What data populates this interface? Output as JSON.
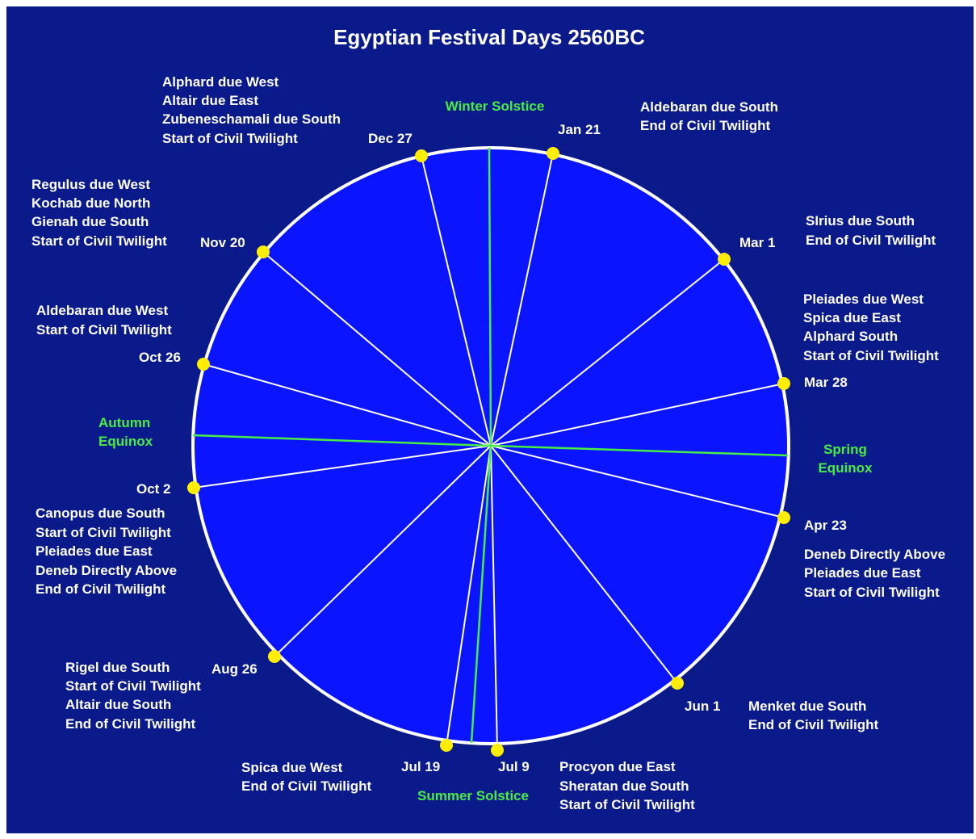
{
  "title": "Egyptian Festival Days 2560BC",
  "colors": {
    "background": "#0a1a8a",
    "disc": "#0a14ff",
    "ring": "#ffffff",
    "marker": "#ffee00",
    "season": "#44ee44",
    "text": "#ffffff"
  },
  "seasons": {
    "winter_solstice": "Winter Solstice",
    "spring_equinox": [
      "Spring",
      "Equinox"
    ],
    "summer_solstice": "Summer Solstice",
    "autumn_equinox": [
      "Autumn",
      "Equinox"
    ]
  },
  "festival_days": [
    {
      "date": "Jan 21",
      "notes": [
        "Aldebaran due South",
        "End of Civil Twilight"
      ]
    },
    {
      "date": "Mar 1",
      "notes": [
        "SIrius due South",
        "End of Civil Twilight"
      ]
    },
    {
      "date": "Mar 28",
      "notes": [
        "Pleiades due West",
        "Spica due East",
        "Alphard South",
        "Start of Civil Twilight"
      ]
    },
    {
      "date": "Apr 23",
      "notes": [
        "Deneb Directly Above",
        "Pleiades due East",
        "Start of Civil Twilight"
      ]
    },
    {
      "date": "Jun 1",
      "notes": [
        "Menket due South",
        "End of Civil Twilight"
      ]
    },
    {
      "date": "Jul 9",
      "notes": [
        "Procyon due East",
        "Sheratan due South",
        "Start of Civil Twilight"
      ]
    },
    {
      "date": "Jul 19",
      "notes": [
        "Spica due West",
        "End of Civil Twilight"
      ]
    },
    {
      "date": "Aug 26",
      "notes": [
        "Rigel due South",
        "Start of Civil Twilight",
        "Altair due South",
        "End of Civil Twilight"
      ]
    },
    {
      "date": "Oct 2",
      "notes": [
        "Canopus due South",
        "Start of Civil Twilight",
        "Pleiades due East",
        "Deneb Directly Above",
        "End of Civil Twilight"
      ]
    },
    {
      "date": "Oct 26",
      "notes": [
        "Aldebaran due West",
        "Start of Civil Twilight"
      ]
    },
    {
      "date": "Nov 20",
      "notes": [
        "Regulus due West",
        "Kochab due North",
        "Gienah due South",
        "Start of Civil Twilight"
      ]
    },
    {
      "date": "Dec 27",
      "notes": [
        "Alphard due West",
        "Altair due East",
        "Zubeneschamali due South",
        "Start of Civil Twilight"
      ]
    }
  ]
}
